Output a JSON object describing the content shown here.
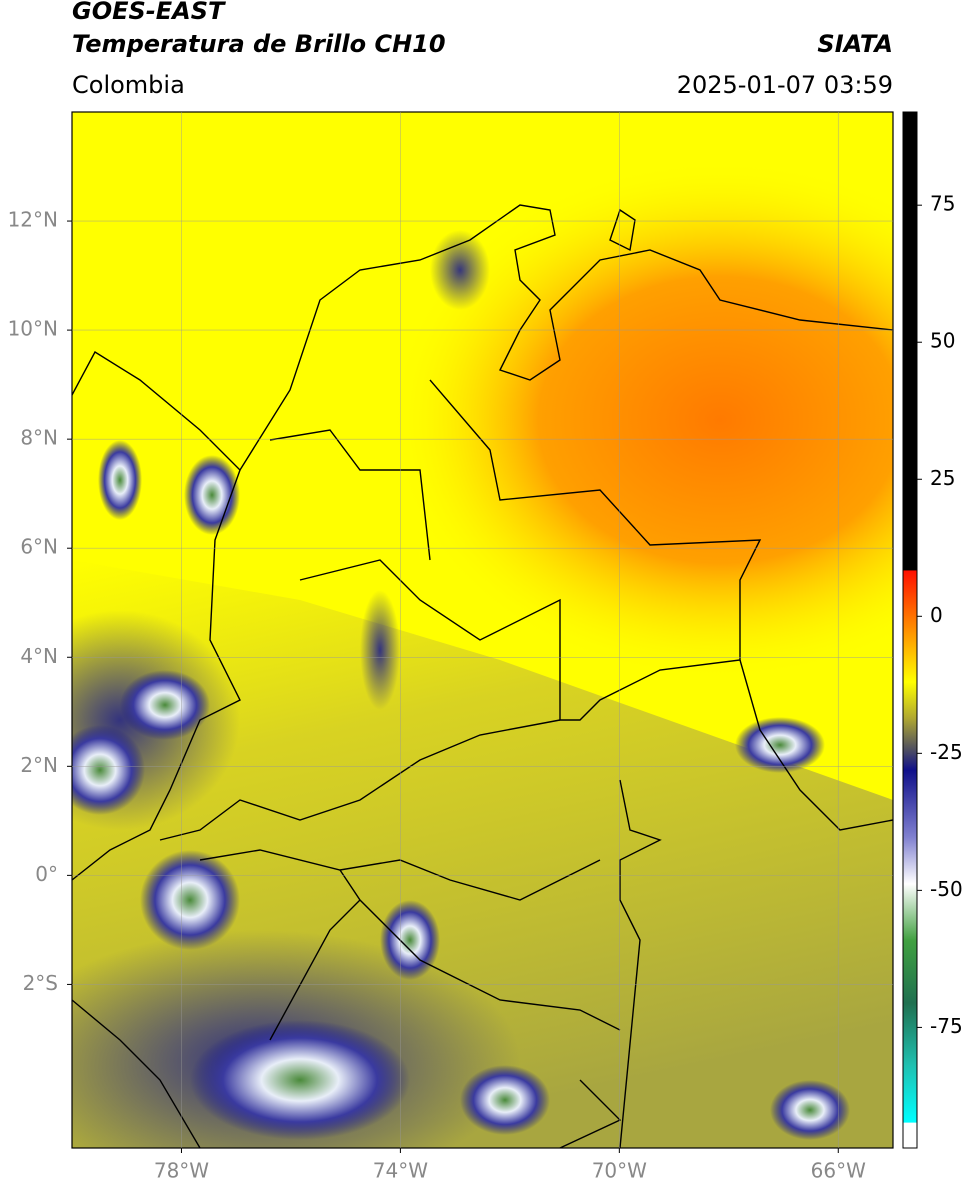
{
  "header": {
    "title": "GOES-EAST",
    "subtitle": "Temperatura de Brillo CH10",
    "source": "SIATA",
    "region": "Colombia",
    "timestamp": "2025-01-07 03:59"
  },
  "map": {
    "xlim": [
      -80,
      -65
    ],
    "ylim": [
      -5,
      14
    ],
    "xticks": [
      {
        "value": -78,
        "label": "78°W"
      },
      {
        "value": -74,
        "label": "74°W"
      },
      {
        "value": -70,
        "label": "70°W"
      },
      {
        "value": -66,
        "label": "66°W"
      }
    ],
    "yticks": [
      {
        "value": 12,
        "label": "12°N"
      },
      {
        "value": 10,
        "label": "10°N"
      },
      {
        "value": 8,
        "label": "8°N"
      },
      {
        "value": 6,
        "label": "6°N"
      },
      {
        "value": 4,
        "label": "4°N"
      },
      {
        "value": 2,
        "label": "2°N"
      },
      {
        "value": 0,
        "label": "0°"
      },
      {
        "value": -2,
        "label": "2°S"
      }
    ],
    "grid": true,
    "colorbar": {
      "lim": [
        -97,
        92
      ],
      "ticks": [
        75,
        50,
        25,
        0,
        -25,
        -50,
        -75
      ]
    }
  }
}
